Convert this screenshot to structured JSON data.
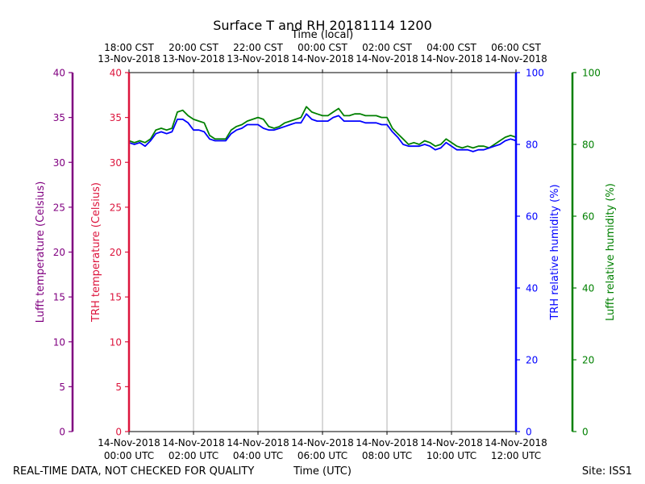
{
  "chart_data": {
    "type": "line",
    "title": "Surface T and RH 20181114 1200",
    "top_axis_label": "Time (local)",
    "bottom_axis_label": "Time (UTC)",
    "footer_left": "REAL-TIME DATA, NOT CHECKED FOR QUALITY",
    "footer_right": "Site: ISS1",
    "x_range_minutes": [
      0,
      720
    ],
    "grid": "vertical",
    "bottom_ticks": [
      {
        "m": 0,
        "date": "14-Nov-2018",
        "time": "00:00 UTC"
      },
      {
        "m": 120,
        "date": "14-Nov-2018",
        "time": "02:00 UTC"
      },
      {
        "m": 240,
        "date": "14-Nov-2018",
        "time": "04:00 UTC"
      },
      {
        "m": 360,
        "date": "14-Nov-2018",
        "time": "06:00 UTC"
      },
      {
        "m": 480,
        "date": "14-Nov-2018",
        "time": "08:00 UTC"
      },
      {
        "m": 600,
        "date": "14-Nov-2018",
        "time": "10:00 UTC"
      },
      {
        "m": 720,
        "date": "14-Nov-2018",
        "time": "12:00 UTC"
      }
    ],
    "top_ticks": [
      {
        "m": 0,
        "time": "18:00 CST",
        "date": "13-Nov-2018"
      },
      {
        "m": 120,
        "time": "20:00 CST",
        "date": "13-Nov-2018"
      },
      {
        "m": 240,
        "time": "22:00 CST",
        "date": "13-Nov-2018"
      },
      {
        "m": 360,
        "time": "00:00 CST",
        "date": "14-Nov-2018"
      },
      {
        "m": 480,
        "time": "02:00 CST",
        "date": "14-Nov-2018"
      },
      {
        "m": 600,
        "time": "04:00 CST",
        "date": "14-Nov-2018"
      },
      {
        "m": 720,
        "time": "06:00 CST",
        "date": "14-Nov-2018"
      }
    ],
    "axes": [
      {
        "id": "lufft-temp",
        "label": "Lufft temperature (Celsius)",
        "color": "#800080",
        "range": [
          0,
          40
        ],
        "ticks": [
          0,
          5,
          10,
          15,
          20,
          25,
          30,
          35,
          40
        ]
      },
      {
        "id": "trh-temp",
        "label": "TRH temperature (Celsius)",
        "color": "#dc143c",
        "range": [
          0,
          40
        ],
        "ticks": [
          0,
          5,
          10,
          15,
          20,
          25,
          30,
          35,
          40
        ]
      },
      {
        "id": "trh-rh",
        "label": "TRH relative humidity (%)",
        "color": "#0000ff",
        "range": [
          0,
          100
        ],
        "ticks": [
          0,
          20,
          40,
          60,
          80,
          100
        ]
      },
      {
        "id": "lufft-rh",
        "label": "Lufft relative humidity (%)",
        "color": "#008000",
        "range": [
          0,
          100
        ],
        "ticks": [
          0,
          20,
          40,
          60,
          80,
          100
        ]
      }
    ],
    "series": [
      {
        "axis": "lufft-rh",
        "color": "#008000",
        "x": [
          0,
          10,
          20,
          30,
          40,
          50,
          60,
          70,
          80,
          90,
          100,
          110,
          120,
          130,
          140,
          150,
          160,
          170,
          180,
          190,
          200,
          210,
          220,
          230,
          240,
          250,
          260,
          270,
          280,
          290,
          300,
          310,
          320,
          330,
          340,
          350,
          360,
          370,
          380,
          390,
          400,
          410,
          420,
          430,
          440,
          450,
          460,
          470,
          480,
          490,
          500,
          510,
          520,
          530,
          540,
          550,
          560,
          570,
          580,
          590,
          600,
          610,
          620,
          630,
          640,
          650,
          660,
          670,
          680,
          690,
          700,
          710,
          720
        ],
        "y": [
          81,
          80.5,
          81,
          80.5,
          81.5,
          84,
          84.5,
          84,
          84.5,
          89,
          89.5,
          88,
          87,
          86.5,
          86,
          82.5,
          81.5,
          81.5,
          81.5,
          84,
          85,
          85.5,
          86.5,
          87,
          87.5,
          87,
          85,
          84.5,
          85,
          86,
          86.5,
          87,
          87.5,
          90.5,
          89,
          88.5,
          88,
          88,
          89,
          90,
          88,
          88,
          88.5,
          88.5,
          88,
          88,
          88,
          87.5,
          87.5,
          84.5,
          83,
          81.5,
          80,
          80.5,
          80,
          81,
          80.5,
          79.5,
          80,
          81.5,
          80.5,
          79.5,
          79,
          79.5,
          79,
          79.5,
          79.5,
          79,
          80,
          81,
          82,
          82.5,
          82
        ]
      },
      {
        "axis": "trh-rh",
        "color": "#0000ff",
        "x": [
          0,
          10,
          20,
          30,
          40,
          50,
          60,
          70,
          80,
          90,
          100,
          110,
          120,
          130,
          140,
          150,
          160,
          170,
          180,
          190,
          200,
          210,
          220,
          230,
          240,
          250,
          260,
          270,
          280,
          290,
          300,
          310,
          320,
          330,
          340,
          350,
          360,
          370,
          380,
          390,
          400,
          410,
          420,
          430,
          440,
          450,
          460,
          470,
          480,
          490,
          500,
          510,
          520,
          530,
          540,
          550,
          560,
          570,
          580,
          590,
          600,
          610,
          620,
          630,
          640,
          650,
          660,
          670,
          680,
          690,
          700,
          710,
          720
        ],
        "y": [
          80.5,
          80,
          80.5,
          79.5,
          81,
          83,
          83.5,
          83,
          83.5,
          87,
          87,
          86,
          84,
          84,
          83.5,
          81.5,
          81,
          81,
          81,
          83,
          84,
          84.5,
          85.5,
          85.5,
          85.5,
          84.5,
          84,
          84,
          84.5,
          85,
          85.5,
          86,
          86,
          88.5,
          87,
          86.5,
          86.5,
          86.5,
          87.5,
          88,
          86.5,
          86.5,
          86.5,
          86.5,
          86,
          86,
          86,
          85.5,
          85.5,
          83.5,
          82,
          80,
          79.5,
          79.5,
          79.5,
          80,
          79.5,
          78.5,
          79,
          80.5,
          79.5,
          78.5,
          78.5,
          78.5,
          78,
          78.5,
          78.5,
          79,
          79.5,
          80,
          81,
          81.5,
          81
        ]
      }
    ]
  }
}
